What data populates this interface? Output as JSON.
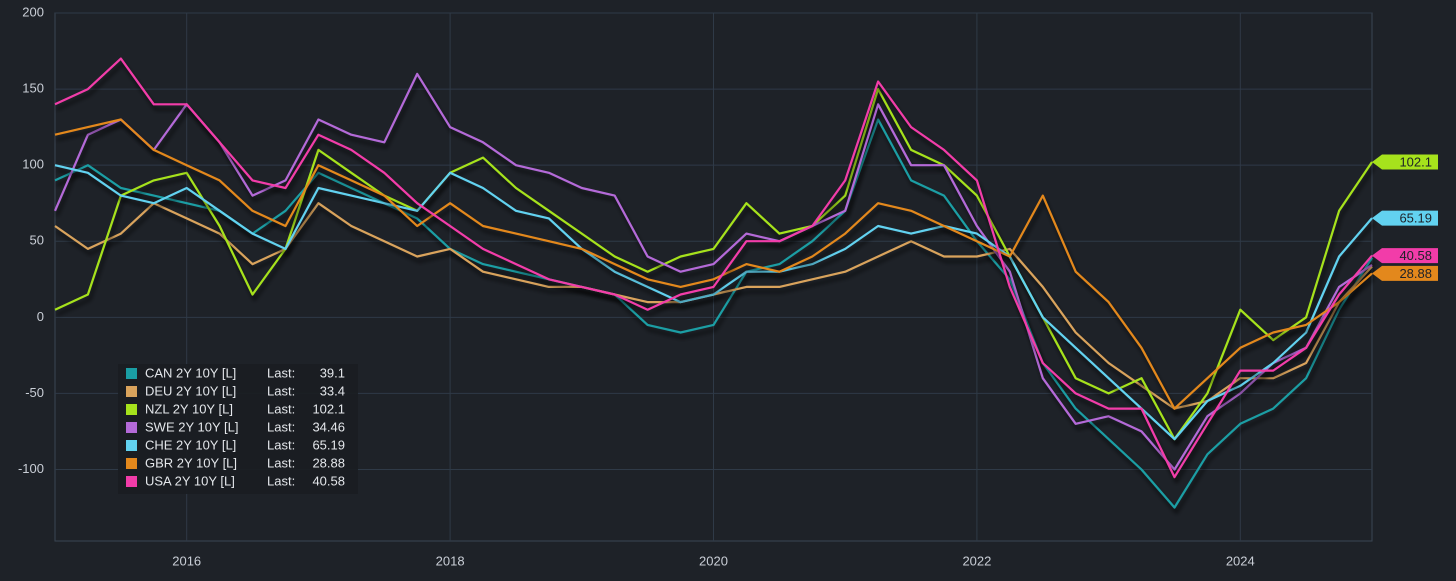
{
  "chart_data": {
    "type": "line",
    "x": [
      2015,
      2015.25,
      2015.5,
      2015.75,
      2016,
      2016.25,
      2016.5,
      2016.75,
      2017,
      2017.25,
      2017.5,
      2017.75,
      2018,
      2018.25,
      2018.5,
      2018.75,
      2019,
      2019.25,
      2019.5,
      2019.75,
      2020,
      2020.25,
      2020.5,
      2020.75,
      2021,
      2021.25,
      2021.5,
      2021.75,
      2022,
      2022.25,
      2022.5,
      2022.75,
      2023,
      2023.25,
      2023.5,
      2023.75,
      2024,
      2024.25,
      2024.5,
      2024.75,
      2025
    ],
    "xlim": [
      2015,
      2025
    ],
    "xticks": [
      2016,
      2018,
      2020,
      2022,
      2024
    ],
    "ylim": [
      -147,
      200
    ],
    "yticks": [
      -100,
      -50,
      0,
      50,
      100,
      150,
      200
    ],
    "grid": true,
    "legend_last_label": "Last:",
    "series": [
      {
        "name": "CAN 2Y 10Y [L]",
        "color": "#1a9ea4",
        "last": 39.1,
        "end_flag": false,
        "values": [
          90,
          100,
          85,
          80,
          75,
          70,
          55,
          70,
          95,
          85,
          75,
          65,
          45,
          35,
          30,
          25,
          20,
          15,
          -5,
          -10,
          -5,
          30,
          35,
          50,
          70,
          130,
          90,
          80,
          50,
          25,
          -30,
          -60,
          -80,
          -100,
          -125,
          -90,
          -70,
          -60,
          -40,
          5,
          39.1
        ]
      },
      {
        "name": "DEU 2Y 10Y [L]",
        "color": "#d9a35c",
        "last": 33.4,
        "end_flag": false,
        "values": [
          60,
          45,
          55,
          75,
          65,
          55,
          35,
          45,
          75,
          60,
          50,
          40,
          45,
          30,
          25,
          20,
          20,
          15,
          10,
          10,
          15,
          20,
          20,
          25,
          30,
          40,
          50,
          40,
          40,
          45,
          20,
          -10,
          -30,
          -45,
          -60,
          -55,
          -40,
          -40,
          -30,
          10,
          33.4
        ]
      },
      {
        "name": "NZL 2Y 10Y [L]",
        "color": "#a6e21c",
        "last": 102.1,
        "end_flag": true,
        "values": [
          5,
          15,
          80,
          90,
          95,
          60,
          15,
          45,
          110,
          95,
          80,
          70,
          95,
          105,
          85,
          70,
          55,
          40,
          30,
          40,
          45,
          75,
          55,
          60,
          80,
          150,
          110,
          100,
          80,
          40,
          0,
          -40,
          -50,
          -40,
          -80,
          -50,
          5,
          -15,
          0,
          70,
          102.1
        ]
      },
      {
        "name": "SWE 2Y 10Y [L]",
        "color": "#b46ad8",
        "last": 34.46,
        "end_flag": false,
        "values": [
          70,
          120,
          130,
          110,
          140,
          115,
          80,
          90,
          130,
          120,
          115,
          160,
          125,
          115,
          100,
          95,
          85,
          80,
          40,
          30,
          35,
          55,
          50,
          60,
          70,
          140,
          100,
          100,
          60,
          30,
          -40,
          -70,
          -65,
          -75,
          -100,
          -65,
          -50,
          -30,
          -20,
          20,
          34.46
        ]
      },
      {
        "name": "CHE 2Y 10Y [L]",
        "color": "#62d2f0",
        "last": 65.19,
        "end_flag": true,
        "values": [
          100,
          95,
          80,
          75,
          85,
          70,
          55,
          45,
          85,
          80,
          75,
          70,
          95,
          85,
          70,
          65,
          45,
          30,
          20,
          10,
          15,
          30,
          30,
          35,
          45,
          60,
          55,
          60,
          55,
          40,
          0,
          -20,
          -40,
          -60,
          -80,
          -55,
          -45,
          -30,
          -10,
          40,
          65.19
        ]
      },
      {
        "name": "GBR 2Y 10Y [L]",
        "color": "#e3881c",
        "last": 28.88,
        "end_flag": true,
        "values": [
          120,
          125,
          130,
          110,
          100,
          90,
          70,
          60,
          100,
          90,
          80,
          60,
          75,
          60,
          55,
          50,
          45,
          35,
          25,
          20,
          25,
          35,
          30,
          40,
          55,
          75,
          70,
          60,
          50,
          40,
          80,
          30,
          10,
          -20,
          -60,
          -40,
          -20,
          -10,
          -5,
          10,
          28.88
        ]
      },
      {
        "name": "USA 2Y 10Y [L]",
        "color": "#f23ca9",
        "last": 40.58,
        "end_flag": true,
        "values": [
          140,
          150,
          170,
          140,
          140,
          115,
          90,
          85,
          120,
          110,
          95,
          75,
          60,
          45,
          35,
          25,
          20,
          15,
          5,
          15,
          20,
          50,
          50,
          60,
          90,
          155,
          125,
          110,
          90,
          20,
          -30,
          -50,
          -60,
          -60,
          -105,
          -70,
          -35,
          -35,
          -20,
          15,
          40.58
        ]
      }
    ]
  }
}
